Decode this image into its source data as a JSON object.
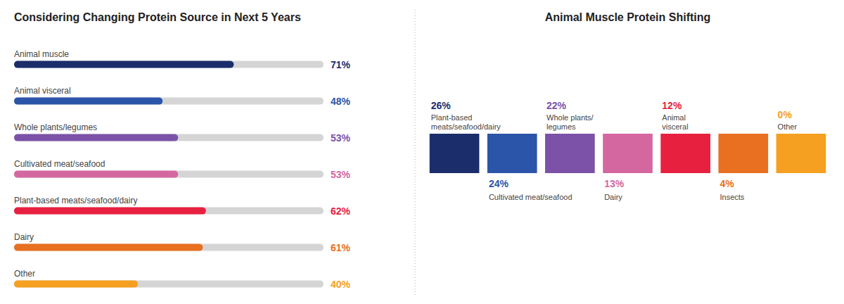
{
  "chart_data": [
    {
      "type": "bar",
      "orientation": "horizontal",
      "title": "Considering Changing Protein Source in Next 5 Years",
      "categories": [
        "Animal muscle",
        "Animal visceral",
        "Whole plants/legumes",
        "Cultivated meat/seafood",
        "Plant-based meats/seafood/dairy",
        "Dairy",
        "Other"
      ],
      "values": [
        71,
        48,
        53,
        53,
        62,
        61,
        40
      ],
      "value_labels": [
        "71%",
        "48%",
        "53%",
        "53%",
        "62%",
        "61%",
        "40%"
      ],
      "colors": [
        "#1b2d6b",
        "#2b55a8",
        "#7b52a8",
        "#d467a0",
        "#e82040",
        "#e87020",
        "#f5a020"
      ],
      "xlim": [
        0,
        100
      ],
      "data_labels": true,
      "tick_labels": false,
      "grid": false
    },
    {
      "type": "tiles",
      "title": "Animal Muscle Protein Shifting",
      "categories": [
        "Plant-based\nmeats/seafood/dairy",
        "Cultivated meat/seafood",
        "Whole plants/\nlegumes",
        "Dairy",
        "Animal\nvisceral",
        "Insects",
        "Other"
      ],
      "values": [
        26,
        24,
        22,
        13,
        12,
        4,
        0
      ],
      "value_labels": [
        "26%",
        "24%",
        "22%",
        "13%",
        "12%",
        "4%",
        "0%"
      ],
      "colors": [
        "#1b2d6b",
        "#2b55a8",
        "#7b52a8",
        "#d467a0",
        "#e82040",
        "#e87020",
        "#f5a020"
      ],
      "data_labels": true,
      "tick_labels": false,
      "grid": false
    }
  ]
}
